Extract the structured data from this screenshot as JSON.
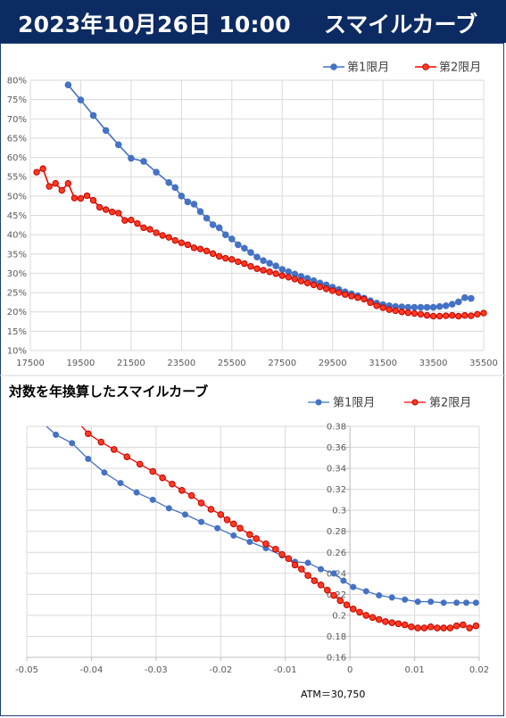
{
  "header": {
    "date_text": "2023年10月26日 10:00",
    "title_text": "スマイルカーブ"
  },
  "colors": {
    "banner": "#0d2b63",
    "series1": "#4472c4",
    "series2": "#ff0000",
    "series2_fill": "#ff3b1f",
    "grid": "#d9d9d9"
  },
  "chart_data": [
    {
      "type": "line",
      "title": "",
      "xlabel": "",
      "ylabel": "",
      "xlim": [
        17500,
        35500
      ],
      "ylim": [
        0.1,
        0.8
      ],
      "x_ticks": [
        "17500",
        "19500",
        "21500",
        "23500",
        "25500",
        "27500",
        "29500",
        "31500",
        "33500",
        "35500"
      ],
      "y_ticks": [
        "10%",
        "15%",
        "20%",
        "25%",
        "30%",
        "35%",
        "40%",
        "45%",
        "50%",
        "55%",
        "60%",
        "65%",
        "70%",
        "75%",
        "80%"
      ],
      "legend": "top-right",
      "series": [
        {
          "name": "第1限月",
          "color": "#4472c4",
          "points": [
            [
              19000,
              0.788
            ],
            [
              19500,
              0.749
            ],
            [
              20000,
              0.709
            ],
            [
              20500,
              0.67
            ],
            [
              21000,
              0.633
            ],
            [
              21500,
              0.598
            ],
            [
              22000,
              0.59
            ],
            [
              22500,
              0.562
            ],
            [
              23000,
              0.535
            ],
            [
              23250,
              0.522
            ],
            [
              23500,
              0.5
            ],
            [
              23750,
              0.485
            ],
            [
              24000,
              0.479
            ],
            [
              24250,
              0.46
            ],
            [
              24500,
              0.443
            ],
            [
              24750,
              0.426
            ],
            [
              25000,
              0.418
            ],
            [
              25250,
              0.4
            ],
            [
              25500,
              0.389
            ],
            [
              25750,
              0.374
            ],
            [
              26000,
              0.365
            ],
            [
              26250,
              0.354
            ],
            [
              26500,
              0.342
            ],
            [
              26750,
              0.333
            ],
            [
              27000,
              0.326
            ],
            [
              27250,
              0.319
            ],
            [
              27500,
              0.31
            ],
            [
              27750,
              0.304
            ],
            [
              28000,
              0.298
            ],
            [
              28250,
              0.292
            ],
            [
              28500,
              0.287
            ],
            [
              28750,
              0.281
            ],
            [
              29000,
              0.275
            ],
            [
              29250,
              0.27
            ],
            [
              29500,
              0.264
            ],
            [
              29750,
              0.258
            ],
            [
              30000,
              0.252
            ],
            [
              30250,
              0.247
            ],
            [
              30500,
              0.242
            ],
            [
              30750,
              0.236
            ],
            [
              31000,
              0.229
            ],
            [
              31250,
              0.223
            ],
            [
              31500,
              0.219
            ],
            [
              31750,
              0.216
            ],
            [
              32000,
              0.214
            ],
            [
              32250,
              0.213
            ],
            [
              32500,
              0.212
            ],
            [
              32750,
              0.212
            ],
            [
              33000,
              0.212
            ],
            [
              33250,
              0.212
            ],
            [
              33500,
              0.212
            ],
            [
              33750,
              0.214
            ],
            [
              34000,
              0.216
            ],
            [
              34250,
              0.22
            ],
            [
              34500,
              0.226
            ],
            [
              34750,
              0.237
            ],
            [
              35000,
              0.235
            ]
          ]
        },
        {
          "name": "第2限月",
          "color": "#ff0000",
          "points": [
            [
              17750,
              0.562
            ],
            [
              18000,
              0.571
            ],
            [
              18250,
              0.525
            ],
            [
              18500,
              0.533
            ],
            [
              18750,
              0.515
            ],
            [
              19000,
              0.533
            ],
            [
              19250,
              0.495
            ],
            [
              19500,
              0.494
            ],
            [
              19750,
              0.501
            ],
            [
              20000,
              0.489
            ],
            [
              20250,
              0.471
            ],
            [
              20500,
              0.465
            ],
            [
              20750,
              0.459
            ],
            [
              21000,
              0.456
            ],
            [
              21250,
              0.437
            ],
            [
              21500,
              0.438
            ],
            [
              21750,
              0.429
            ],
            [
              22000,
              0.418
            ],
            [
              22250,
              0.414
            ],
            [
              22500,
              0.405
            ],
            [
              22750,
              0.398
            ],
            [
              23000,
              0.393
            ],
            [
              23250,
              0.385
            ],
            [
              23500,
              0.379
            ],
            [
              23750,
              0.374
            ],
            [
              24000,
              0.366
            ],
            [
              24250,
              0.363
            ],
            [
              24500,
              0.358
            ],
            [
              24750,
              0.351
            ],
            [
              25000,
              0.344
            ],
            [
              25250,
              0.339
            ],
            [
              25500,
              0.336
            ],
            [
              25750,
              0.33
            ],
            [
              26000,
              0.325
            ],
            [
              26250,
              0.318
            ],
            [
              26500,
              0.312
            ],
            [
              26750,
              0.308
            ],
            [
              27000,
              0.304
            ],
            [
              27250,
              0.299
            ],
            [
              27500,
              0.294
            ],
            [
              27750,
              0.29
            ],
            [
              28000,
              0.285
            ],
            [
              28250,
              0.28
            ],
            [
              28500,
              0.275
            ],
            [
              28750,
              0.27
            ],
            [
              29000,
              0.265
            ],
            [
              29250,
              0.26
            ],
            [
              29500,
              0.255
            ],
            [
              29750,
              0.25
            ],
            [
              30000,
              0.245
            ],
            [
              30250,
              0.241
            ],
            [
              30500,
              0.237
            ],
            [
              30750,
              0.233
            ],
            [
              31000,
              0.224
            ],
            [
              31250,
              0.216
            ],
            [
              31500,
              0.211
            ],
            [
              31750,
              0.206
            ],
            [
              32000,
              0.203
            ],
            [
              32250,
              0.2
            ],
            [
              32500,
              0.198
            ],
            [
              32750,
              0.196
            ],
            [
              33000,
              0.194
            ],
            [
              33250,
              0.191
            ],
            [
              33500,
              0.189
            ],
            [
              33750,
              0.189
            ],
            [
              34000,
              0.19
            ],
            [
              34250,
              0.191
            ],
            [
              34500,
              0.189
            ],
            [
              34750,
              0.191
            ],
            [
              35000,
              0.19
            ],
            [
              35250,
              0.194
            ],
            [
              35500,
              0.197
            ]
          ]
        }
      ]
    },
    {
      "type": "line",
      "title": "対数を年換算したスマイルカーブ",
      "xlabel": "",
      "ylabel": "",
      "xlim": [
        -0.05,
        0.02
      ],
      "ylim": [
        0.16,
        0.38
      ],
      "x_ticks": [
        "-0.05",
        "-0.04",
        "-0.03",
        "-0.02",
        "-0.01",
        "0",
        "0.01",
        "0.02"
      ],
      "y_ticks": [
        "0.16",
        "0.18",
        "0.2",
        "0.22",
        "0.24",
        "0.26",
        "0.28",
        "0.3",
        "0.32",
        "0.34",
        "0.36",
        "0.38"
      ],
      "annotation": "ATM＝30,750",
      "legend": "top-right",
      "series": [
        {
          "name": "第1限月",
          "color": "#4472c4",
          "points": [
            [
              -0.0475,
              0.383
            ],
            [
              -0.0455,
              0.372
            ],
            [
              -0.043,
              0.364
            ],
            [
              -0.0405,
              0.349
            ],
            [
              -0.038,
              0.336
            ],
            [
              -0.0355,
              0.326
            ],
            [
              -0.033,
              0.317
            ],
            [
              -0.0305,
              0.31
            ],
            [
              -0.028,
              0.302
            ],
            [
              -0.0255,
              0.296
            ],
            [
              -0.023,
              0.289
            ],
            [
              -0.0205,
              0.283
            ],
            [
              -0.018,
              0.276
            ],
            [
              -0.0155,
              0.27
            ],
            [
              -0.013,
              0.264
            ],
            [
              -0.0105,
              0.257
            ],
            [
              -0.0085,
              0.251
            ],
            [
              -0.0065,
              0.25
            ],
            [
              -0.0045,
              0.244
            ],
            [
              -0.0025,
              0.24
            ],
            [
              -0.001,
              0.233
            ],
            [
              0.0005,
              0.227
            ],
            [
              0.0025,
              0.223
            ],
            [
              0.0045,
              0.219
            ],
            [
              0.0065,
              0.217
            ],
            [
              0.0085,
              0.215
            ],
            [
              0.0105,
              0.213
            ],
            [
              0.0125,
              0.213
            ],
            [
              0.0145,
              0.212
            ],
            [
              0.0165,
              0.212
            ],
            [
              0.018,
              0.212
            ],
            [
              0.0195,
              0.212
            ]
          ]
        },
        {
          "name": "第2限月",
          "color": "#ff0000",
          "points": [
            [
              -0.044,
              0.39
            ],
            [
              -0.0425,
              0.387
            ],
            [
              -0.0405,
              0.373
            ],
            [
              -0.0385,
              0.365
            ],
            [
              -0.0365,
              0.358
            ],
            [
              -0.0345,
              0.351
            ],
            [
              -0.0325,
              0.344
            ],
            [
              -0.0305,
              0.337
            ],
            [
              -0.029,
              0.331
            ],
            [
              -0.0275,
              0.325
            ],
            [
              -0.026,
              0.319
            ],
            [
              -0.0245,
              0.314
            ],
            [
              -0.023,
              0.307
            ],
            [
              -0.0215,
              0.301
            ],
            [
              -0.02,
              0.296
            ],
            [
              -0.019,
              0.291
            ],
            [
              -0.018,
              0.287
            ],
            [
              -0.017,
              0.283
            ],
            [
              -0.0155,
              0.277
            ],
            [
              -0.0145,
              0.273
            ],
            [
              -0.013,
              0.268
            ],
            [
              -0.0115,
              0.263
            ],
            [
              -0.0105,
              0.258
            ],
            [
              -0.0095,
              0.254
            ],
            [
              -0.0085,
              0.248
            ],
            [
              -0.0075,
              0.244
            ],
            [
              -0.0065,
              0.238
            ],
            [
              -0.0055,
              0.233
            ],
            [
              -0.0045,
              0.229
            ],
            [
              -0.0035,
              0.224
            ],
            [
              -0.0025,
              0.219
            ],
            [
              -0.0015,
              0.214
            ],
            [
              -0.0005,
              0.21
            ],
            [
              0.0005,
              0.206
            ],
            [
              0.0015,
              0.203
            ],
            [
              0.0025,
              0.2
            ],
            [
              0.0035,
              0.198
            ],
            [
              0.0045,
              0.196
            ],
            [
              0.0055,
              0.194
            ],
            [
              0.0065,
              0.193
            ],
            [
              0.0075,
              0.192
            ],
            [
              0.0085,
              0.191
            ],
            [
              0.0095,
              0.189
            ],
            [
              0.0105,
              0.188
            ],
            [
              0.0115,
              0.188
            ],
            [
              0.0125,
              0.189
            ],
            [
              0.0135,
              0.188
            ],
            [
              0.0145,
              0.188
            ],
            [
              0.0155,
              0.188
            ],
            [
              0.0165,
              0.19
            ],
            [
              0.0175,
              0.191
            ],
            [
              0.0185,
              0.188
            ],
            [
              0.0195,
              0.19
            ]
          ]
        }
      ]
    }
  ]
}
